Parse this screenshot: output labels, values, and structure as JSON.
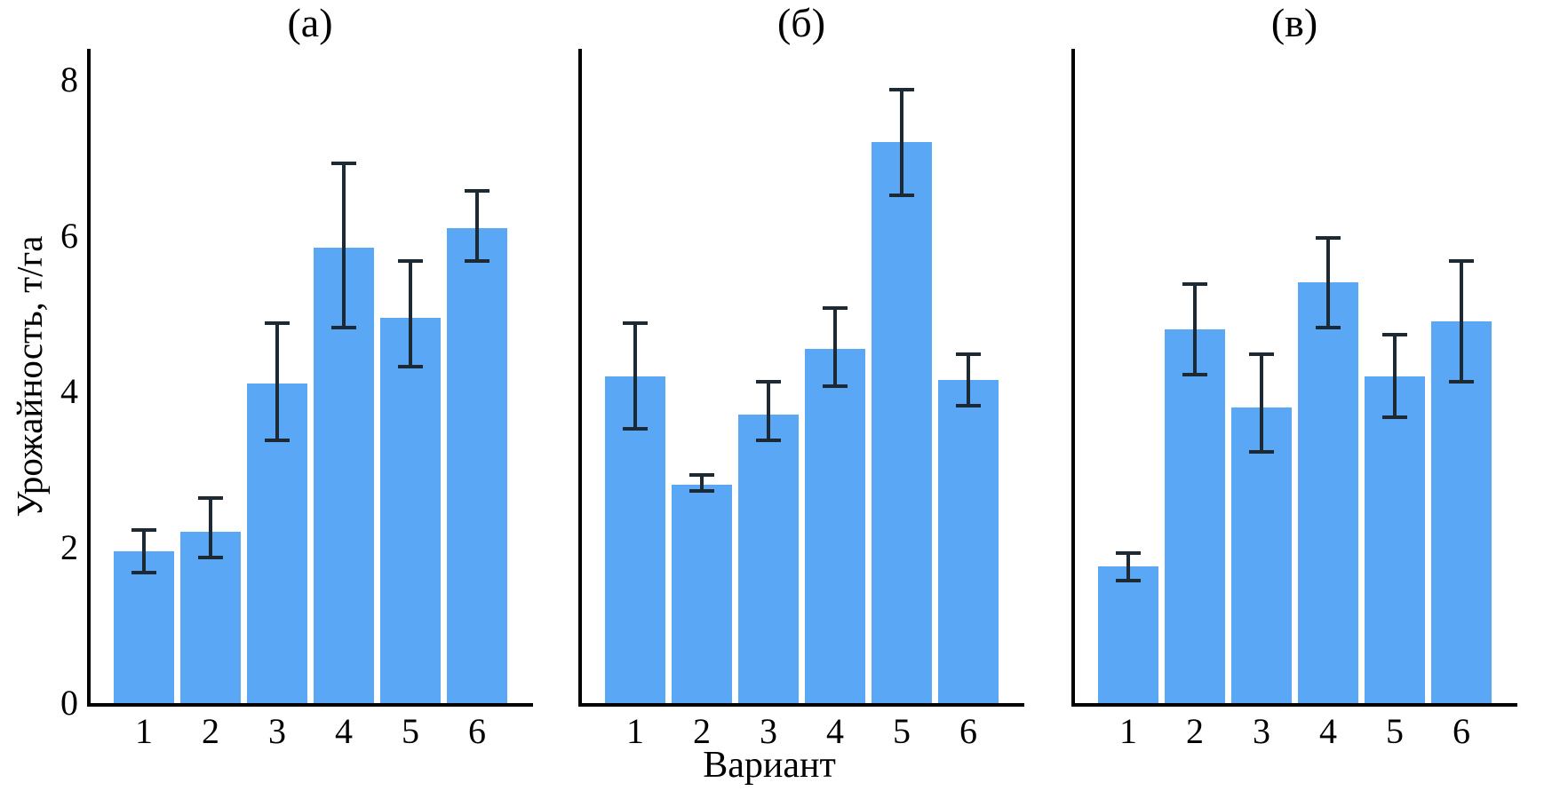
{
  "figure": {
    "ylabel": "Урожайность, т/га",
    "xlabel": "Вариант",
    "background": "#ffffff",
    "bar_color": "#5aa7f5",
    "error_color": "#1d2a33",
    "axis_color": "#000000"
  },
  "chart_data": [
    {
      "type": "bar",
      "title": "(а)",
      "categories": [
        "1",
        "2",
        "3",
        "4",
        "5",
        "6"
      ],
      "values": [
        1.95,
        2.2,
        4.1,
        5.85,
        4.95,
        6.1
      ],
      "error_upper": [
        2.25,
        2.65,
        4.9,
        6.95,
        5.7,
        6.6
      ],
      "error_lower": [
        1.65,
        1.85,
        3.35,
        4.8,
        4.3,
        5.65
      ],
      "xlabel": "Вариант",
      "ylabel": "Урожайность, т/га",
      "ylim": [
        0,
        8.4
      ],
      "yticks": [
        0,
        2,
        4,
        6,
        8
      ],
      "grid": false,
      "legend": "none"
    },
    {
      "type": "bar",
      "title": "(б)",
      "categories": [
        "1",
        "2",
        "3",
        "4",
        "5",
        "6"
      ],
      "values": [
        4.2,
        2.8,
        3.7,
        4.55,
        7.2,
        4.15
      ],
      "error_upper": [
        4.9,
        2.95,
        4.15,
        5.1,
        7.9,
        4.5
      ],
      "error_lower": [
        3.5,
        2.7,
        3.35,
        4.05,
        6.5,
        3.8
      ],
      "xlabel": "Вариант",
      "ylabel": "Урожайность, т/га",
      "ylim": [
        0,
        8.4
      ],
      "yticks": [
        0,
        2,
        4,
        6,
        8
      ],
      "grid": false,
      "legend": "none"
    },
    {
      "type": "bar",
      "title": "(в)",
      "categories": [
        "1",
        "2",
        "3",
        "4",
        "5",
        "6"
      ],
      "values": [
        1.75,
        4.8,
        3.8,
        5.4,
        4.2,
        4.9
      ],
      "error_upper": [
        1.95,
        5.4,
        4.5,
        6.0,
        4.75,
        5.7
      ],
      "error_lower": [
        1.55,
        4.2,
        3.2,
        4.8,
        3.65,
        4.1
      ],
      "xlabel": "Вариант",
      "ylabel": "Урожайность, т/га",
      "ylim": [
        0,
        8.4
      ],
      "yticks": [
        0,
        2,
        4,
        6,
        8
      ],
      "grid": false,
      "legend": "none"
    }
  ]
}
